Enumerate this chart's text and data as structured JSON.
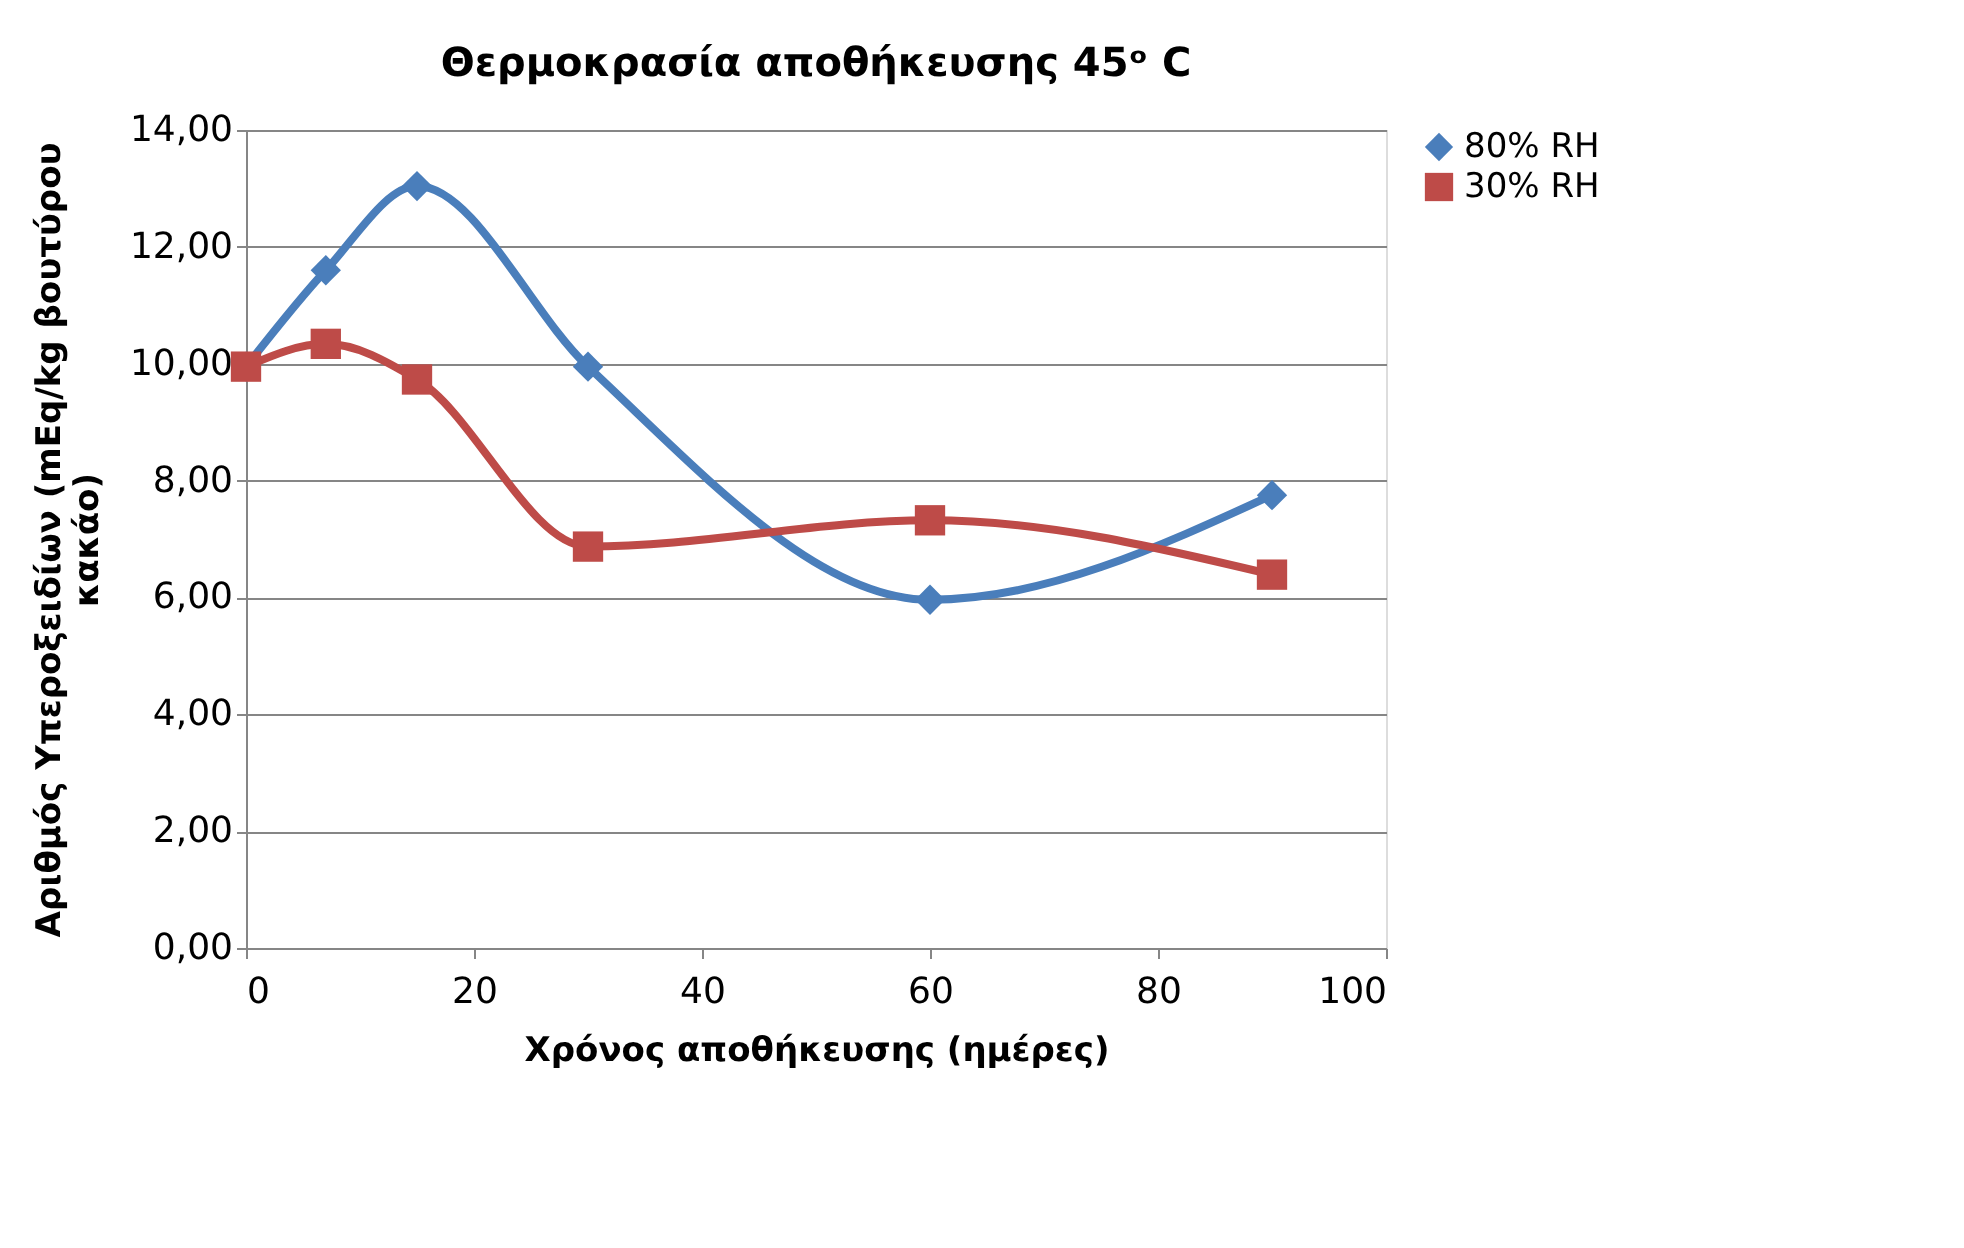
{
  "chart_data": {
    "type": "line",
    "title": "Θερμοκρασία αποθήκευσης 45ᵒ C",
    "xlabel": "Χρόνος αποθήκευσης (ημέρες)",
    "ylabel": "Αριθμός Υπεροξειδίων (mEq/kg βουτύρου κακάο)",
    "x": [
      0,
      7,
      15,
      30,
      60,
      90
    ],
    "series": [
      {
        "name": "80% RH",
        "color": "#4a7ebb",
        "marker": "diamond",
        "values": [
          9.95,
          11.6,
          13.04,
          9.95,
          5.96,
          7.75
        ]
      },
      {
        "name": "30% RH",
        "color": "#be4b48",
        "marker": "square",
        "values": [
          9.95,
          10.34,
          9.73,
          6.87,
          7.32,
          6.39
        ]
      }
    ],
    "xlim": [
      0,
      100
    ],
    "xticks": [
      0,
      20,
      40,
      60,
      80,
      100
    ],
    "ylim": [
      0,
      14
    ],
    "yticks": [
      {
        "value": 0,
        "label": "0,00"
      },
      {
        "value": 2,
        "label": "2,00"
      },
      {
        "value": 4,
        "label": "4,00"
      },
      {
        "value": 6,
        "label": "6,00"
      },
      {
        "value": 8,
        "label": "8,00"
      },
      {
        "value": 10,
        "label": "10,00"
      },
      {
        "value": 12,
        "label": "12,00"
      },
      {
        "value": 14,
        "label": "14,00"
      }
    ],
    "grid": "y",
    "legend": "right",
    "line_style": "solid"
  }
}
